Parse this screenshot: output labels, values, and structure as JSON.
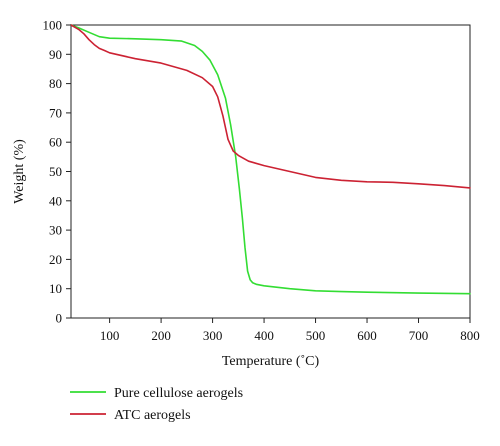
{
  "chart_data": {
    "type": "line",
    "title": "",
    "xlabel": "Temperature (˚C)",
    "ylabel": "Weight (%)",
    "xlim": [
      25,
      800
    ],
    "ylim": [
      0,
      100
    ],
    "xticks": [
      100,
      200,
      300,
      400,
      500,
      600,
      700,
      800
    ],
    "yticks": [
      0,
      10,
      20,
      30,
      40,
      50,
      60,
      70,
      80,
      90,
      100
    ],
    "grid": false,
    "legend_position": "bottom-left",
    "series": [
      {
        "name": "Pure cellulose aerogels",
        "color": "#33dd33",
        "x": [
          25,
          40,
          60,
          80,
          100,
          150,
          200,
          240,
          265,
          280,
          295,
          310,
          325,
          335,
          345,
          352,
          358,
          363,
          368,
          373,
          378,
          385,
          400,
          450,
          500,
          550,
          600,
          700,
          800
        ],
        "y": [
          100,
          99,
          97.5,
          96,
          95.5,
          95.3,
          95,
          94.5,
          93,
          91,
          88,
          83,
          75,
          66,
          55,
          44,
          34,
          24,
          16,
          13,
          12,
          11.5,
          11,
          10,
          9.3,
          9,
          8.8,
          8.5,
          8.3
        ]
      },
      {
        "name": "ATC aerogels",
        "color": "#cc2233",
        "x": [
          25,
          40,
          50,
          60,
          70,
          80,
          90,
          100,
          150,
          200,
          250,
          280,
          300,
          310,
          320,
          330,
          340,
          350,
          370,
          400,
          450,
          500,
          550,
          600,
          650,
          700,
          750,
          800
        ],
        "y": [
          100,
          98.5,
          97,
          95,
          93.3,
          92,
          91.3,
          90.5,
          88.5,
          87,
          84.5,
          82,
          79,
          75.5,
          69,
          61,
          57,
          55.5,
          53.5,
          52,
          50,
          48,
          47,
          46.5,
          46.3,
          45.8,
          45.2,
          44.4
        ]
      }
    ]
  }
}
